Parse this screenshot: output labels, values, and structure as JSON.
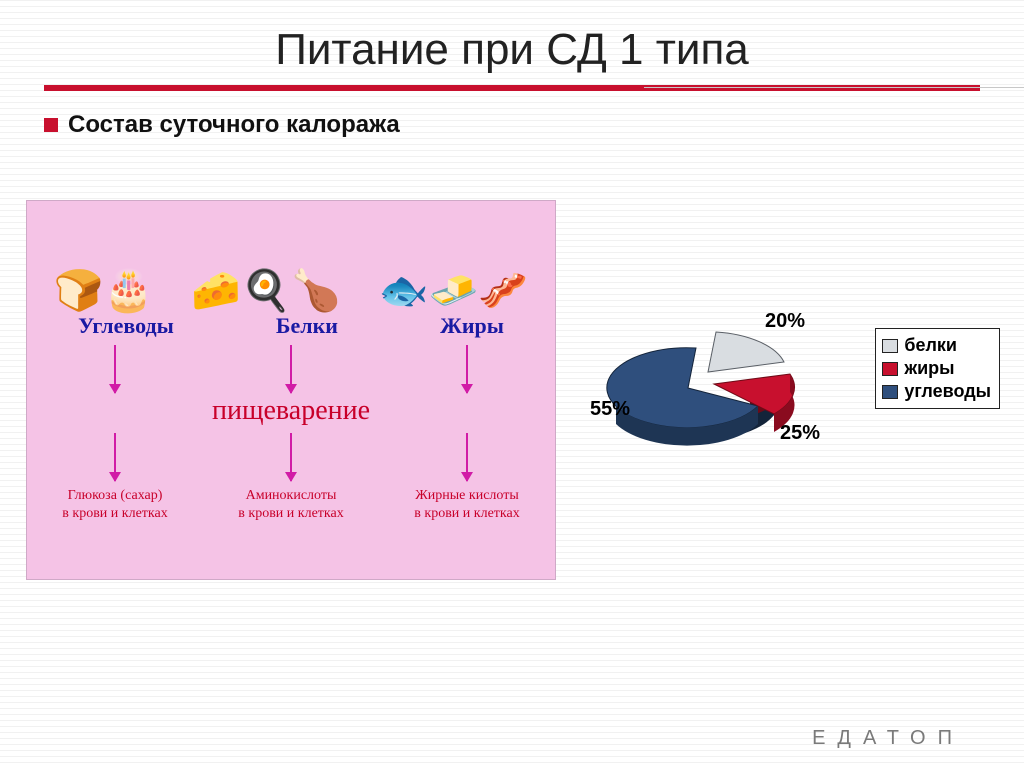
{
  "title": "Питание при СД 1 типа",
  "subtitle": "Состав суточного  калоража",
  "panel": {
    "background_color": "#f5c3e6",
    "category_label_color": "#1a1aa3",
    "arrow_color": "#d11ba6",
    "result_color": "#c8002a",
    "foods_emoji": {
      "carbs": "🍞🎂",
      "proteins": "🧀🍳🍗",
      "fats": "🐟🧈🥓"
    },
    "categories": {
      "carbs": "Углеводы",
      "proteins": "Белки",
      "fats": "Жиры"
    },
    "digestion_label": "пищеварение",
    "results": {
      "carbs": "Глюкоза (сахар)\nв крови и клетках",
      "proteins": "Аминокислоты\nв крови и клетках",
      "fats": "Жирные кислоты\nв крови и клетках"
    }
  },
  "chart": {
    "type": "pie-3d",
    "slices": [
      {
        "key": "proteins",
        "label": "белки",
        "value": 20,
        "pct_label": "20%",
        "color": "#d9dde1",
        "stroke": "#5a5f66"
      },
      {
        "key": "fats",
        "label": "жиры",
        "value": 25,
        "pct_label": "25%",
        "color": "#c8102e",
        "stroke": "#6e0a17"
      },
      {
        "key": "carbs",
        "label": "углеводы",
        "value": 55,
        "pct_label": "55%",
        "color": "#2f4f7d",
        "stroke": "#14243a"
      }
    ],
    "legend_border": "#222222",
    "label_fontsize": 20,
    "label_fontweight": "700"
  },
  "watermark": "ЕДАТОП"
}
